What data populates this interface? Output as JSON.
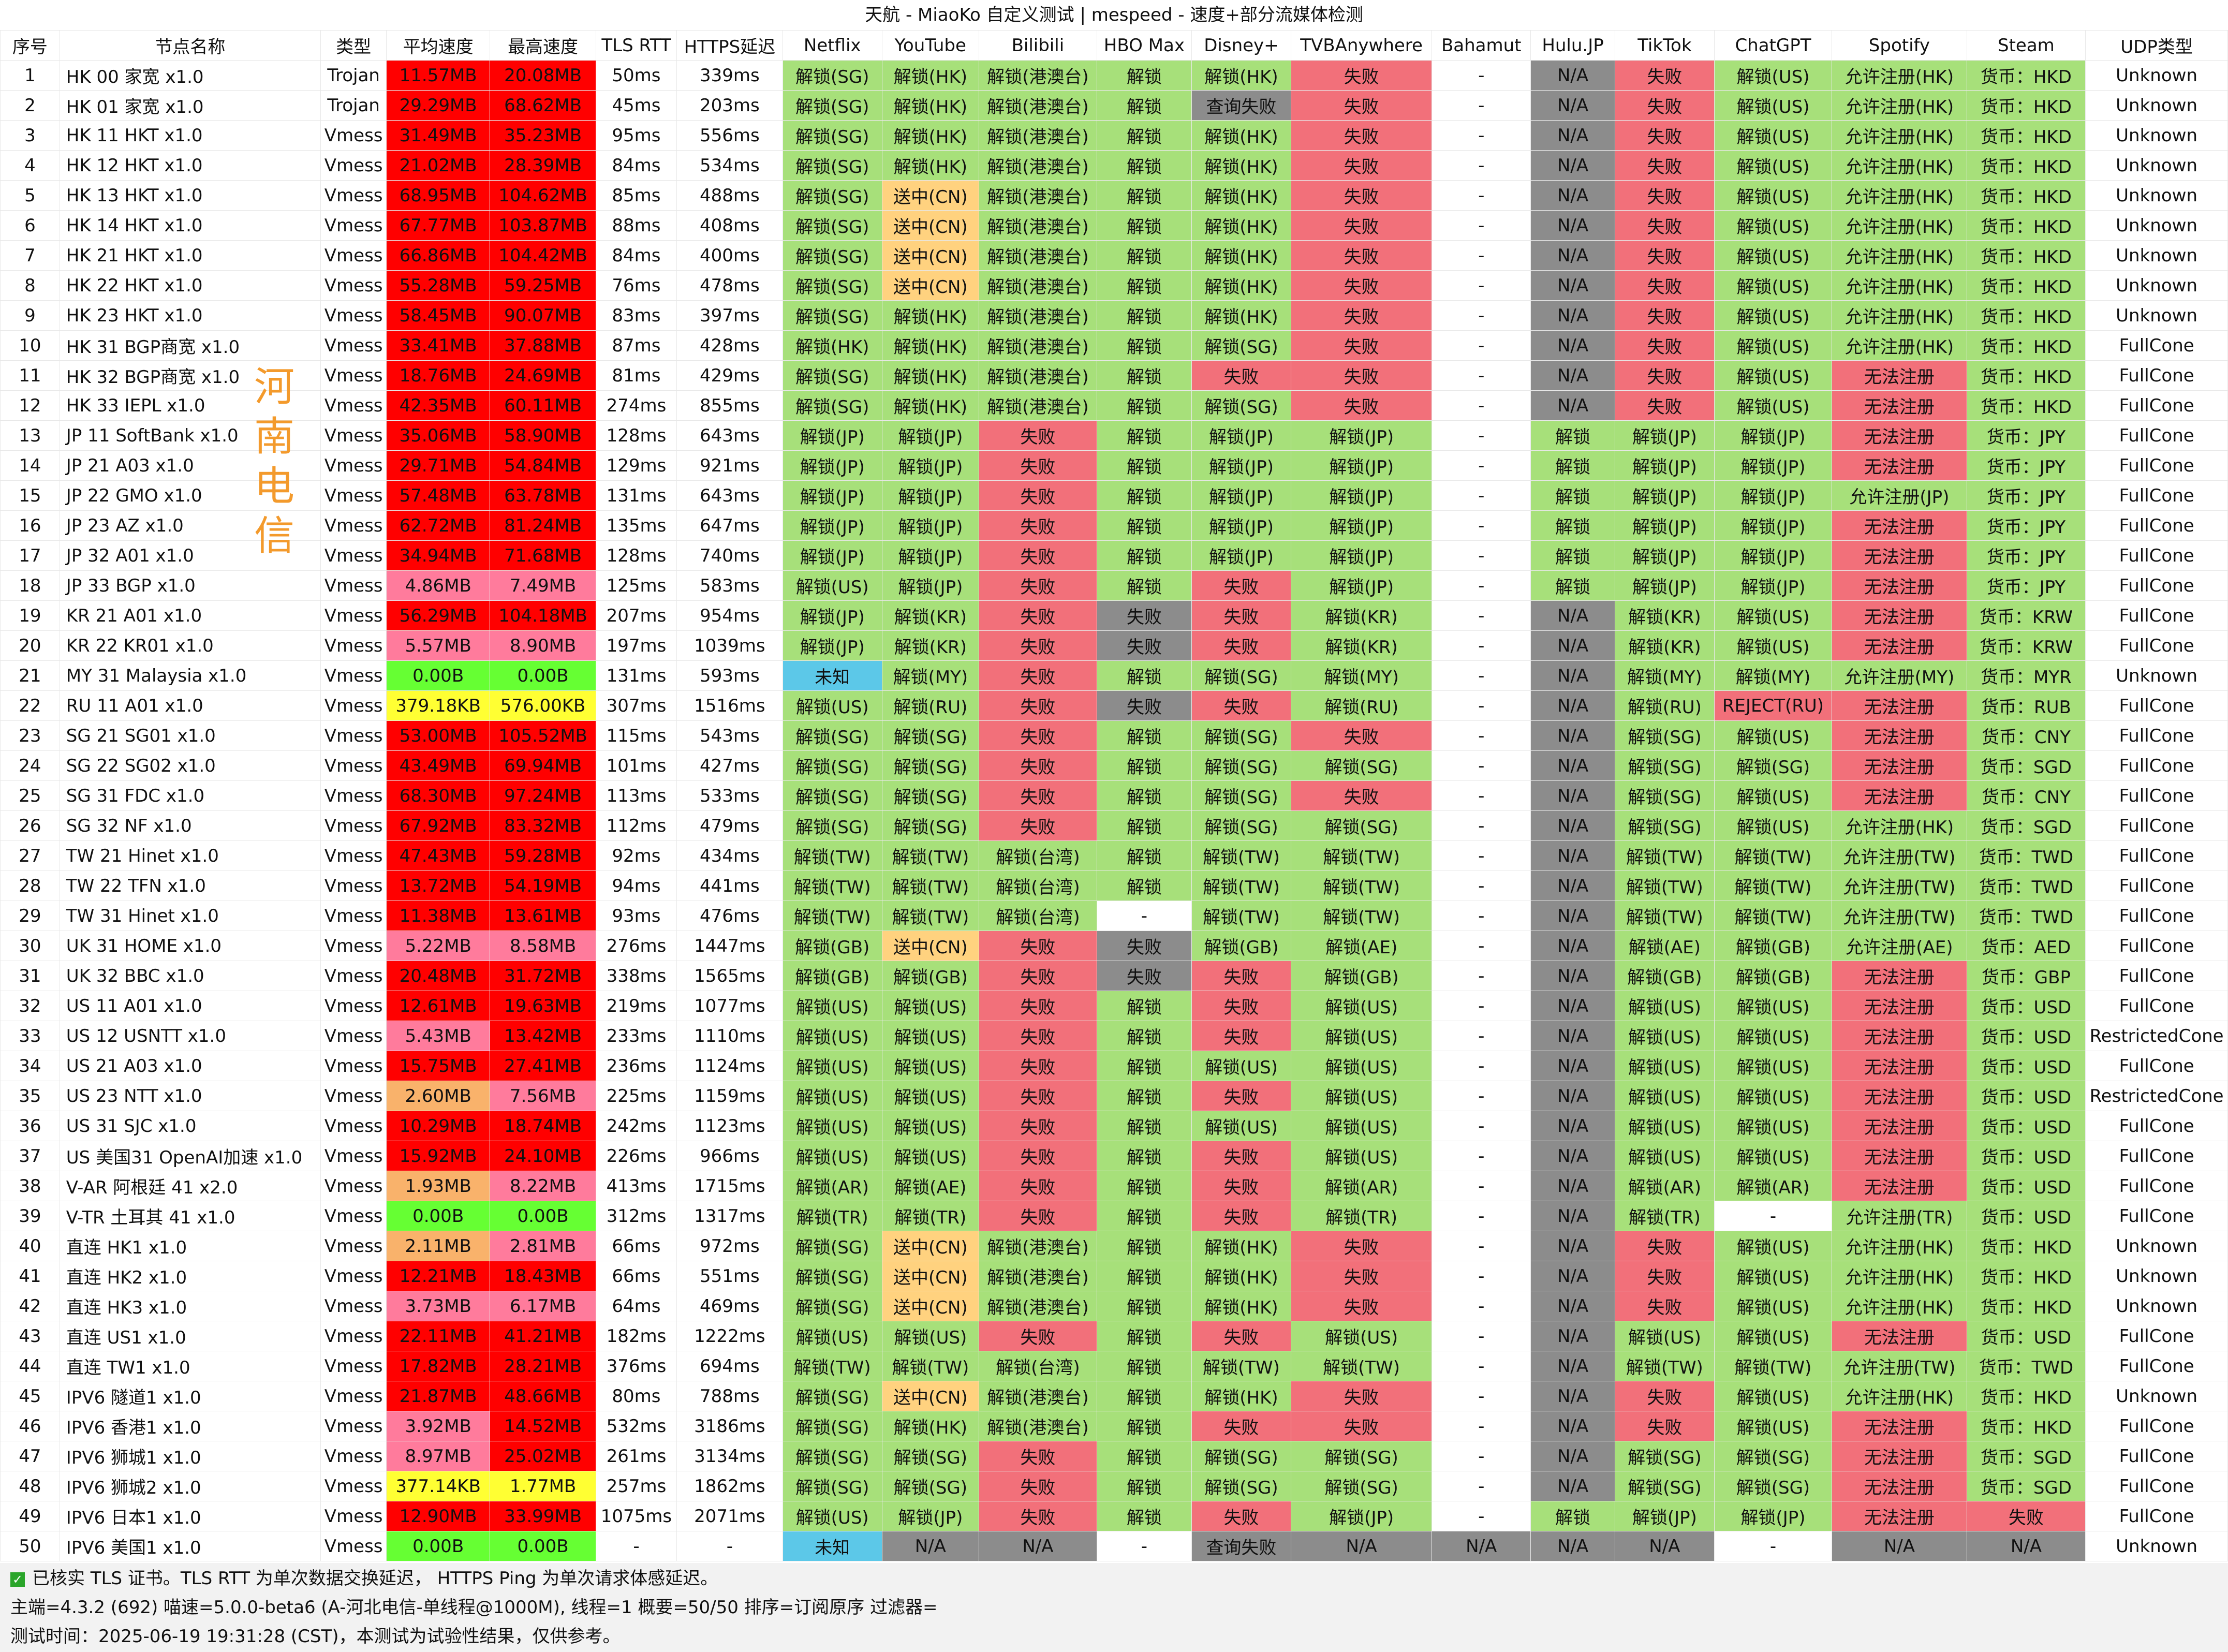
{
  "title": "天航 - MiaoKo 自定义测试 | mespeed - 速度+部分流媒体检测",
  "isp_label": "河南电信",
  "headers": [
    "序号",
    "节点名称",
    "类型",
    "平均速度",
    "最高速度",
    "TLS RTT",
    "HTTPS延迟",
    "Netflix",
    "YouTube",
    "Bilibili",
    "HBO Max",
    "Disney+",
    "TVBAnywhere",
    "Bahamut",
    "Hulu.JP",
    "TikTok",
    "ChatGPT",
    "Spotify",
    "Steam",
    "UDP类型"
  ],
  "rows": [
    [
      "1",
      "HK 00 家宽 x1.0",
      "Trojan",
      "11.57MB",
      "20.08MB",
      "50ms",
      "339ms",
      "解锁(SG)",
      "解锁(HK)",
      "解锁(港澳台)",
      "解锁",
      "解锁(HK)",
      "失败",
      "-",
      "N/A",
      "失败",
      "解锁(US)",
      "允许注册(HK)",
      "货币：HKD",
      "Unknown"
    ],
    [
      "2",
      "HK 01 家宽 x1.0",
      "Trojan",
      "29.29MB",
      "68.62MB",
      "45ms",
      "203ms",
      "解锁(SG)",
      "解锁(HK)",
      "解锁(港澳台)",
      "解锁",
      "查询失败",
      "失败",
      "-",
      "N/A",
      "失败",
      "解锁(US)",
      "允许注册(HK)",
      "货币：HKD",
      "Unknown"
    ],
    [
      "3",
      "HK 11 HKT x1.0",
      "Vmess",
      "31.49MB",
      "35.23MB",
      "95ms",
      "556ms",
      "解锁(SG)",
      "解锁(HK)",
      "解锁(港澳台)",
      "解锁",
      "解锁(HK)",
      "失败",
      "-",
      "N/A",
      "失败",
      "解锁(US)",
      "允许注册(HK)",
      "货币：HKD",
      "Unknown"
    ],
    [
      "4",
      "HK 12 HKT x1.0",
      "Vmess",
      "21.02MB",
      "28.39MB",
      "84ms",
      "534ms",
      "解锁(SG)",
      "解锁(HK)",
      "解锁(港澳台)",
      "解锁",
      "解锁(HK)",
      "失败",
      "-",
      "N/A",
      "失败",
      "解锁(US)",
      "允许注册(HK)",
      "货币：HKD",
      "Unknown"
    ],
    [
      "5",
      "HK 13 HKT x1.0",
      "Vmess",
      "68.95MB",
      "104.62MB",
      "85ms",
      "488ms",
      "解锁(SG)",
      "送中(CN)",
      "解锁(港澳台)",
      "解锁",
      "解锁(HK)",
      "失败",
      "-",
      "N/A",
      "失败",
      "解锁(US)",
      "允许注册(HK)",
      "货币：HKD",
      "Unknown"
    ],
    [
      "6",
      "HK 14 HKT x1.0",
      "Vmess",
      "67.77MB",
      "103.87MB",
      "88ms",
      "408ms",
      "解锁(SG)",
      "送中(CN)",
      "解锁(港澳台)",
      "解锁",
      "解锁(HK)",
      "失败",
      "-",
      "N/A",
      "失败",
      "解锁(US)",
      "允许注册(HK)",
      "货币：HKD",
      "Unknown"
    ],
    [
      "7",
      "HK 21 HKT x1.0",
      "Vmess",
      "66.86MB",
      "104.42MB",
      "84ms",
      "400ms",
      "解锁(SG)",
      "送中(CN)",
      "解锁(港澳台)",
      "解锁",
      "解锁(HK)",
      "失败",
      "-",
      "N/A",
      "失败",
      "解锁(US)",
      "允许注册(HK)",
      "货币：HKD",
      "Unknown"
    ],
    [
      "8",
      "HK 22 HKT x1.0",
      "Vmess",
      "55.28MB",
      "59.25MB",
      "76ms",
      "478ms",
      "解锁(SG)",
      "送中(CN)",
      "解锁(港澳台)",
      "解锁",
      "解锁(HK)",
      "失败",
      "-",
      "N/A",
      "失败",
      "解锁(US)",
      "允许注册(HK)",
      "货币：HKD",
      "Unknown"
    ],
    [
      "9",
      "HK 23 HKT x1.0",
      "Vmess",
      "58.45MB",
      "90.07MB",
      "83ms",
      "397ms",
      "解锁(SG)",
      "解锁(HK)",
      "解锁(港澳台)",
      "解锁",
      "解锁(HK)",
      "失败",
      "-",
      "N/A",
      "失败",
      "解锁(US)",
      "允许注册(HK)",
      "货币：HKD",
      "Unknown"
    ],
    [
      "10",
      "HK 31 BGP商宽 x1.0",
      "Vmess",
      "33.41MB",
      "37.88MB",
      "87ms",
      "428ms",
      "解锁(HK)",
      "解锁(HK)",
      "解锁(港澳台)",
      "解锁",
      "解锁(SG)",
      "失败",
      "-",
      "N/A",
      "失败",
      "解锁(US)",
      "允许注册(HK)",
      "货币：HKD",
      "FullCone"
    ],
    [
      "11",
      "HK 32 BGP商宽 x1.0",
      "Vmess",
      "18.76MB",
      "24.69MB",
      "81ms",
      "429ms",
      "解锁(SG)",
      "解锁(HK)",
      "解锁(港澳台)",
      "解锁",
      "失败",
      "失败",
      "-",
      "N/A",
      "失败",
      "解锁(US)",
      "无法注册",
      "货币：HKD",
      "FullCone"
    ],
    [
      "12",
      "HK 33 IEPL x1.0",
      "Vmess",
      "42.35MB",
      "60.11MB",
      "274ms",
      "855ms",
      "解锁(SG)",
      "解锁(HK)",
      "解锁(港澳台)",
      "解锁",
      "解锁(SG)",
      "失败",
      "-",
      "N/A",
      "失败",
      "解锁(US)",
      "无法注册",
      "货币：HKD",
      "FullCone"
    ],
    [
      "13",
      "JP 11 SoftBank x1.0",
      "Vmess",
      "35.06MB",
      "58.90MB",
      "128ms",
      "643ms",
      "解锁(JP)",
      "解锁(JP)",
      "失败",
      "解锁",
      "解锁(JP)",
      "解锁(JP)",
      "-",
      "解锁",
      "解锁(JP)",
      "解锁(JP)",
      "无法注册",
      "货币：JPY",
      "FullCone"
    ],
    [
      "14",
      "JP 21 A03 x1.0",
      "Vmess",
      "29.71MB",
      "54.84MB",
      "129ms",
      "921ms",
      "解锁(JP)",
      "解锁(JP)",
      "失败",
      "解锁",
      "解锁(JP)",
      "解锁(JP)",
      "-",
      "解锁",
      "解锁(JP)",
      "解锁(JP)",
      "无法注册",
      "货币：JPY",
      "FullCone"
    ],
    [
      "15",
      "JP 22 GMO x1.0",
      "Vmess",
      "57.48MB",
      "63.78MB",
      "131ms",
      "643ms",
      "解锁(JP)",
      "解锁(JP)",
      "失败",
      "解锁",
      "解锁(JP)",
      "解锁(JP)",
      "-",
      "解锁",
      "解锁(JP)",
      "解锁(JP)",
      "允许注册(JP)",
      "货币：JPY",
      "FullCone"
    ],
    [
      "16",
      "JP 23 AZ x1.0",
      "Vmess",
      "62.72MB",
      "81.24MB",
      "135ms",
      "647ms",
      "解锁(JP)",
      "解锁(JP)",
      "失败",
      "解锁",
      "解锁(JP)",
      "解锁(JP)",
      "-",
      "解锁",
      "解锁(JP)",
      "解锁(JP)",
      "无法注册",
      "货币：JPY",
      "FullCone"
    ],
    [
      "17",
      "JP 32 A01 x1.0",
      "Vmess",
      "34.94MB",
      "71.68MB",
      "128ms",
      "740ms",
      "解锁(JP)",
      "解锁(JP)",
      "失败",
      "解锁",
      "解锁(JP)",
      "解锁(JP)",
      "-",
      "解锁",
      "解锁(JP)",
      "解锁(JP)",
      "无法注册",
      "货币：JPY",
      "FullCone"
    ],
    [
      "18",
      "JP 33 BGP x1.0",
      "Vmess",
      "4.86MB",
      "7.49MB",
      "125ms",
      "583ms",
      "解锁(US)",
      "解锁(JP)",
      "失败",
      "解锁",
      "失败",
      "解锁(JP)",
      "-",
      "解锁",
      "解锁(JP)",
      "解锁(JP)",
      "无法注册",
      "货币：JPY",
      "FullCone"
    ],
    [
      "19",
      "KR 21 A01 x1.0",
      "Vmess",
      "56.29MB",
      "104.18MB",
      "207ms",
      "954ms",
      "解锁(JP)",
      "解锁(KR)",
      "失败",
      "失败",
      "失败",
      "解锁(KR)",
      "-",
      "N/A",
      "解锁(KR)",
      "解锁(US)",
      "无法注册",
      "货币：KRW",
      "FullCone"
    ],
    [
      "20",
      "KR 22 KR01 x1.0",
      "Vmess",
      "5.57MB",
      "8.90MB",
      "197ms",
      "1039ms",
      "解锁(JP)",
      "解锁(KR)",
      "失败",
      "失败",
      "失败",
      "解锁(KR)",
      "-",
      "N/A",
      "解锁(KR)",
      "解锁(US)",
      "无法注册",
      "货币：KRW",
      "FullCone"
    ],
    [
      "21",
      "MY 31 Malaysia x1.0",
      "Vmess",
      "0.00B",
      "0.00B",
      "131ms",
      "593ms",
      "未知",
      "解锁(MY)",
      "失败",
      "解锁",
      "解锁(SG)",
      "解锁(MY)",
      "-",
      "N/A",
      "解锁(MY)",
      "解锁(MY)",
      "允许注册(MY)",
      "货币：MYR",
      "Unknown"
    ],
    [
      "22",
      "RU 11 A01 x1.0",
      "Vmess",
      "379.18KB",
      "576.00KB",
      "307ms",
      "1516ms",
      "解锁(US)",
      "解锁(RU)",
      "失败",
      "失败",
      "失败",
      "解锁(RU)",
      "-",
      "N/A",
      "解锁(RU)",
      "REJECT(RU)",
      "无法注册",
      "货币：RUB",
      "FullCone"
    ],
    [
      "23",
      "SG 21 SG01 x1.0",
      "Vmess",
      "53.00MB",
      "105.52MB",
      "115ms",
      "543ms",
      "解锁(SG)",
      "解锁(SG)",
      "失败",
      "解锁",
      "解锁(SG)",
      "失败",
      "-",
      "N/A",
      "解锁(SG)",
      "解锁(US)",
      "无法注册",
      "货币：CNY",
      "FullCone"
    ],
    [
      "24",
      "SG 22 SG02 x1.0",
      "Vmess",
      "43.49MB",
      "69.94MB",
      "101ms",
      "427ms",
      "解锁(SG)",
      "解锁(SG)",
      "失败",
      "解锁",
      "解锁(SG)",
      "解锁(SG)",
      "-",
      "N/A",
      "解锁(SG)",
      "解锁(SG)",
      "无法注册",
      "货币：SGD",
      "FullCone"
    ],
    [
      "25",
      "SG 31 FDC x1.0",
      "Vmess",
      "68.30MB",
      "97.24MB",
      "113ms",
      "533ms",
      "解锁(SG)",
      "解锁(SG)",
      "失败",
      "解锁",
      "解锁(SG)",
      "失败",
      "-",
      "N/A",
      "解锁(SG)",
      "解锁(US)",
      "无法注册",
      "货币：CNY",
      "FullCone"
    ],
    [
      "26",
      "SG 32 NF x1.0",
      "Vmess",
      "67.92MB",
      "83.32MB",
      "112ms",
      "479ms",
      "解锁(SG)",
      "解锁(SG)",
      "失败",
      "解锁",
      "解锁(SG)",
      "解锁(SG)",
      "-",
      "N/A",
      "解锁(SG)",
      "解锁(US)",
      "允许注册(HK)",
      "货币：SGD",
      "FullCone"
    ],
    [
      "27",
      "TW 21 Hinet x1.0",
      "Vmess",
      "47.43MB",
      "59.28MB",
      "92ms",
      "434ms",
      "解锁(TW)",
      "解锁(TW)",
      "解锁(台湾)",
      "解锁",
      "解锁(TW)",
      "解锁(TW)",
      "-",
      "N/A",
      "解锁(TW)",
      "解锁(TW)",
      "允许注册(TW)",
      "货币：TWD",
      "FullCone"
    ],
    [
      "28",
      "TW 22 TFN x1.0",
      "Vmess",
      "13.72MB",
      "54.19MB",
      "94ms",
      "441ms",
      "解锁(TW)",
      "解锁(TW)",
      "解锁(台湾)",
      "解锁",
      "解锁(TW)",
      "解锁(TW)",
      "-",
      "N/A",
      "解锁(TW)",
      "解锁(TW)",
      "允许注册(TW)",
      "货币：TWD",
      "FullCone"
    ],
    [
      "29",
      "TW 31 Hinet x1.0",
      "Vmess",
      "11.38MB",
      "13.61MB",
      "93ms",
      "476ms",
      "解锁(TW)",
      "解锁(TW)",
      "解锁(台湾)",
      "-",
      "解锁(TW)",
      "解锁(TW)",
      "-",
      "N/A",
      "解锁(TW)",
      "解锁(TW)",
      "允许注册(TW)",
      "货币：TWD",
      "FullCone"
    ],
    [
      "30",
      "UK 31 HOME x1.0",
      "Vmess",
      "5.22MB",
      "8.58MB",
      "276ms",
      "1447ms",
      "解锁(GB)",
      "送中(CN)",
      "失败",
      "失败",
      "解锁(GB)",
      "解锁(AE)",
      "-",
      "N/A",
      "解锁(AE)",
      "解锁(GB)",
      "允许注册(AE)",
      "货币：AED",
      "FullCone"
    ],
    [
      "31",
      "UK 32 BBC x1.0",
      "Vmess",
      "20.48MB",
      "31.72MB",
      "338ms",
      "1565ms",
      "解锁(GB)",
      "解锁(GB)",
      "失败",
      "失败",
      "失败",
      "解锁(GB)",
      "-",
      "N/A",
      "解锁(GB)",
      "解锁(GB)",
      "无法注册",
      "货币：GBP",
      "FullCone"
    ],
    [
      "32",
      "US 11 A01 x1.0",
      "Vmess",
      "12.61MB",
      "19.63MB",
      "219ms",
      "1077ms",
      "解锁(US)",
      "解锁(US)",
      "失败",
      "解锁",
      "失败",
      "解锁(US)",
      "-",
      "N/A",
      "解锁(US)",
      "解锁(US)",
      "无法注册",
      "货币：USD",
      "FullCone"
    ],
    [
      "33",
      "US 12 USNTT x1.0",
      "Vmess",
      "5.43MB",
      "13.42MB",
      "233ms",
      "1110ms",
      "解锁(US)",
      "解锁(US)",
      "失败",
      "解锁",
      "失败",
      "解锁(US)",
      "-",
      "N/A",
      "解锁(US)",
      "解锁(US)",
      "无法注册",
      "货币：USD",
      "RestrictedCone"
    ],
    [
      "34",
      "US 21 A03 x1.0",
      "Vmess",
      "15.75MB",
      "27.41MB",
      "236ms",
      "1124ms",
      "解锁(US)",
      "解锁(US)",
      "失败",
      "解锁",
      "解锁(US)",
      "解锁(US)",
      "-",
      "N/A",
      "解锁(US)",
      "解锁(US)",
      "无法注册",
      "货币：USD",
      "FullCone"
    ],
    [
      "35",
      "US 23 NTT x1.0",
      "Vmess",
      "2.60MB",
      "7.56MB",
      "225ms",
      "1159ms",
      "解锁(US)",
      "解锁(US)",
      "失败",
      "解锁",
      "失败",
      "解锁(US)",
      "-",
      "N/A",
      "解锁(US)",
      "解锁(US)",
      "无法注册",
      "货币：USD",
      "RestrictedCone"
    ],
    [
      "36",
      "US 31 SJC x1.0",
      "Vmess",
      "10.29MB",
      "18.74MB",
      "242ms",
      "1123ms",
      "解锁(US)",
      "解锁(US)",
      "失败",
      "解锁",
      "解锁(US)",
      "解锁(US)",
      "-",
      "N/A",
      "解锁(US)",
      "解锁(US)",
      "无法注册",
      "货币：USD",
      "FullCone"
    ],
    [
      "37",
      "US 美国31 OpenAI加速 x1.0",
      "Vmess",
      "15.92MB",
      "24.10MB",
      "226ms",
      "966ms",
      "解锁(US)",
      "解锁(US)",
      "失败",
      "解锁",
      "失败",
      "解锁(US)",
      "-",
      "N/A",
      "解锁(US)",
      "解锁(US)",
      "无法注册",
      "货币：USD",
      "FullCone"
    ],
    [
      "38",
      "V-AR 阿根廷 41 x2.0",
      "Vmess",
      "1.93MB",
      "8.22MB",
      "413ms",
      "1715ms",
      "解锁(AR)",
      "解锁(AE)",
      "失败",
      "解锁",
      "失败",
      "解锁(AR)",
      "-",
      "N/A",
      "解锁(AR)",
      "解锁(AR)",
      "无法注册",
      "货币：USD",
      "FullCone"
    ],
    [
      "39",
      "V-TR 土耳其 41 x1.0",
      "Vmess",
      "0.00B",
      "0.00B",
      "312ms",
      "1317ms",
      "解锁(TR)",
      "解锁(TR)",
      "失败",
      "解锁",
      "失败",
      "解锁(TR)",
      "-",
      "N/A",
      "解锁(TR)",
      "-",
      "允许注册(TR)",
      "货币：USD",
      "FullCone"
    ],
    [
      "40",
      "直连 HK1 x1.0",
      "Vmess",
      "2.11MB",
      "2.81MB",
      "66ms",
      "972ms",
      "解锁(SG)",
      "送中(CN)",
      "解锁(港澳台)",
      "解锁",
      "解锁(HK)",
      "失败",
      "-",
      "N/A",
      "失败",
      "解锁(US)",
      "允许注册(HK)",
      "货币：HKD",
      "Unknown"
    ],
    [
      "41",
      "直连 HK2 x1.0",
      "Vmess",
      "12.21MB",
      "18.43MB",
      "66ms",
      "551ms",
      "解锁(SG)",
      "送中(CN)",
      "解锁(港澳台)",
      "解锁",
      "解锁(HK)",
      "失败",
      "-",
      "N/A",
      "失败",
      "解锁(US)",
      "允许注册(HK)",
      "货币：HKD",
      "Unknown"
    ],
    [
      "42",
      "直连 HK3 x1.0",
      "Vmess",
      "3.73MB",
      "6.17MB",
      "64ms",
      "469ms",
      "解锁(SG)",
      "送中(CN)",
      "解锁(港澳台)",
      "解锁",
      "解锁(HK)",
      "失败",
      "-",
      "N/A",
      "失败",
      "解锁(US)",
      "允许注册(HK)",
      "货币：HKD",
      "Unknown"
    ],
    [
      "43",
      "直连 US1 x1.0",
      "Vmess",
      "22.11MB",
      "41.21MB",
      "182ms",
      "1222ms",
      "解锁(US)",
      "解锁(US)",
      "失败",
      "解锁",
      "失败",
      "解锁(US)",
      "-",
      "N/A",
      "解锁(US)",
      "解锁(US)",
      "无法注册",
      "货币：USD",
      "FullCone"
    ],
    [
      "44",
      "直连 TW1 x1.0",
      "Vmess",
      "17.82MB",
      "28.21MB",
      "376ms",
      "694ms",
      "解锁(TW)",
      "解锁(TW)",
      "解锁(台湾)",
      "解锁",
      "解锁(TW)",
      "解锁(TW)",
      "-",
      "N/A",
      "解锁(TW)",
      "解锁(TW)",
      "允许注册(TW)",
      "货币：TWD",
      "FullCone"
    ],
    [
      "45",
      "IPV6 隧道1 x1.0",
      "Vmess",
      "21.87MB",
      "48.66MB",
      "80ms",
      "788ms",
      "解锁(SG)",
      "送中(CN)",
      "解锁(港澳台)",
      "解锁",
      "解锁(HK)",
      "失败",
      "-",
      "N/A",
      "失败",
      "解锁(US)",
      "允许注册(HK)",
      "货币：HKD",
      "Unknown"
    ],
    [
      "46",
      "IPV6 香港1 x1.0",
      "Vmess",
      "3.92MB",
      "14.52MB",
      "532ms",
      "3186ms",
      "解锁(SG)",
      "解锁(HK)",
      "解锁(港澳台)",
      "解锁",
      "失败",
      "失败",
      "-",
      "N/A",
      "失败",
      "解锁(US)",
      "无法注册",
      "货币：HKD",
      "FullCone"
    ],
    [
      "47",
      "IPV6 狮城1 x1.0",
      "Vmess",
      "8.97MB",
      "25.02MB",
      "261ms",
      "3134ms",
      "解锁(SG)",
      "解锁(SG)",
      "失败",
      "解锁",
      "解锁(SG)",
      "解锁(SG)",
      "-",
      "N/A",
      "解锁(SG)",
      "解锁(SG)",
      "无法注册",
      "货币：SGD",
      "FullCone"
    ],
    [
      "48",
      "IPV6 狮城2 x1.0",
      "Vmess",
      "377.14KB",
      "1.77MB",
      "257ms",
      "1862ms",
      "解锁(SG)",
      "解锁(SG)",
      "失败",
      "解锁",
      "解锁(SG)",
      "解锁(SG)",
      "-",
      "N/A",
      "解锁(SG)",
      "解锁(SG)",
      "无法注册",
      "货币：SGD",
      "FullCone"
    ],
    [
      "49",
      "IPV6 日本1 x1.0",
      "Vmess",
      "12.90MB",
      "33.99MB",
      "1075ms",
      "2071ms",
      "解锁(US)",
      "解锁(JP)",
      "失败",
      "解锁",
      "失败",
      "解锁(JP)",
      "-",
      "解锁",
      "解锁(JP)",
      "解锁(JP)",
      "无法注册",
      "失败",
      "FullCone"
    ],
    [
      "50",
      "IPV6 美国1 x1.0",
      "Vmess",
      "0.00B",
      "0.00B",
      "-",
      "-",
      "未知",
      "N/A",
      "N/A",
      "-",
      "查询失败",
      "N/A",
      "N/A",
      "N/A",
      "N/A",
      "-",
      "N/A",
      "N/A",
      "Unknown"
    ]
  ],
  "footer": {
    "line1": "已核实 TLS 证书。TLS RTT 为单次数据交换延迟， HTTPS Ping 为单次请求体感延迟。",
    "line2": "主端=4.3.2 (692) 喵速=5.0.0-beta6 (A-河北电信-单线程@1000M), 线程=1 概要=50/50 排序=订阅原序 过滤器=",
    "line3": "测试时间：2025-06-19 19:31:28 (CST)，本测试为试验性结果，仅供参考。"
  },
  "colors": {
    "unlocked": "#a7e07a",
    "failed": "#f2707a",
    "unavailable": "#8c8c8c",
    "speed_fast": "#ff0000",
    "speed_mid": "#ff7b9c",
    "speed_low": "#f9b26b",
    "speed_kb": "#ffff33",
    "speed_zero": "#66ff33",
    "cn": "#ffd27f",
    "unknown": "#5cc8e8"
  }
}
